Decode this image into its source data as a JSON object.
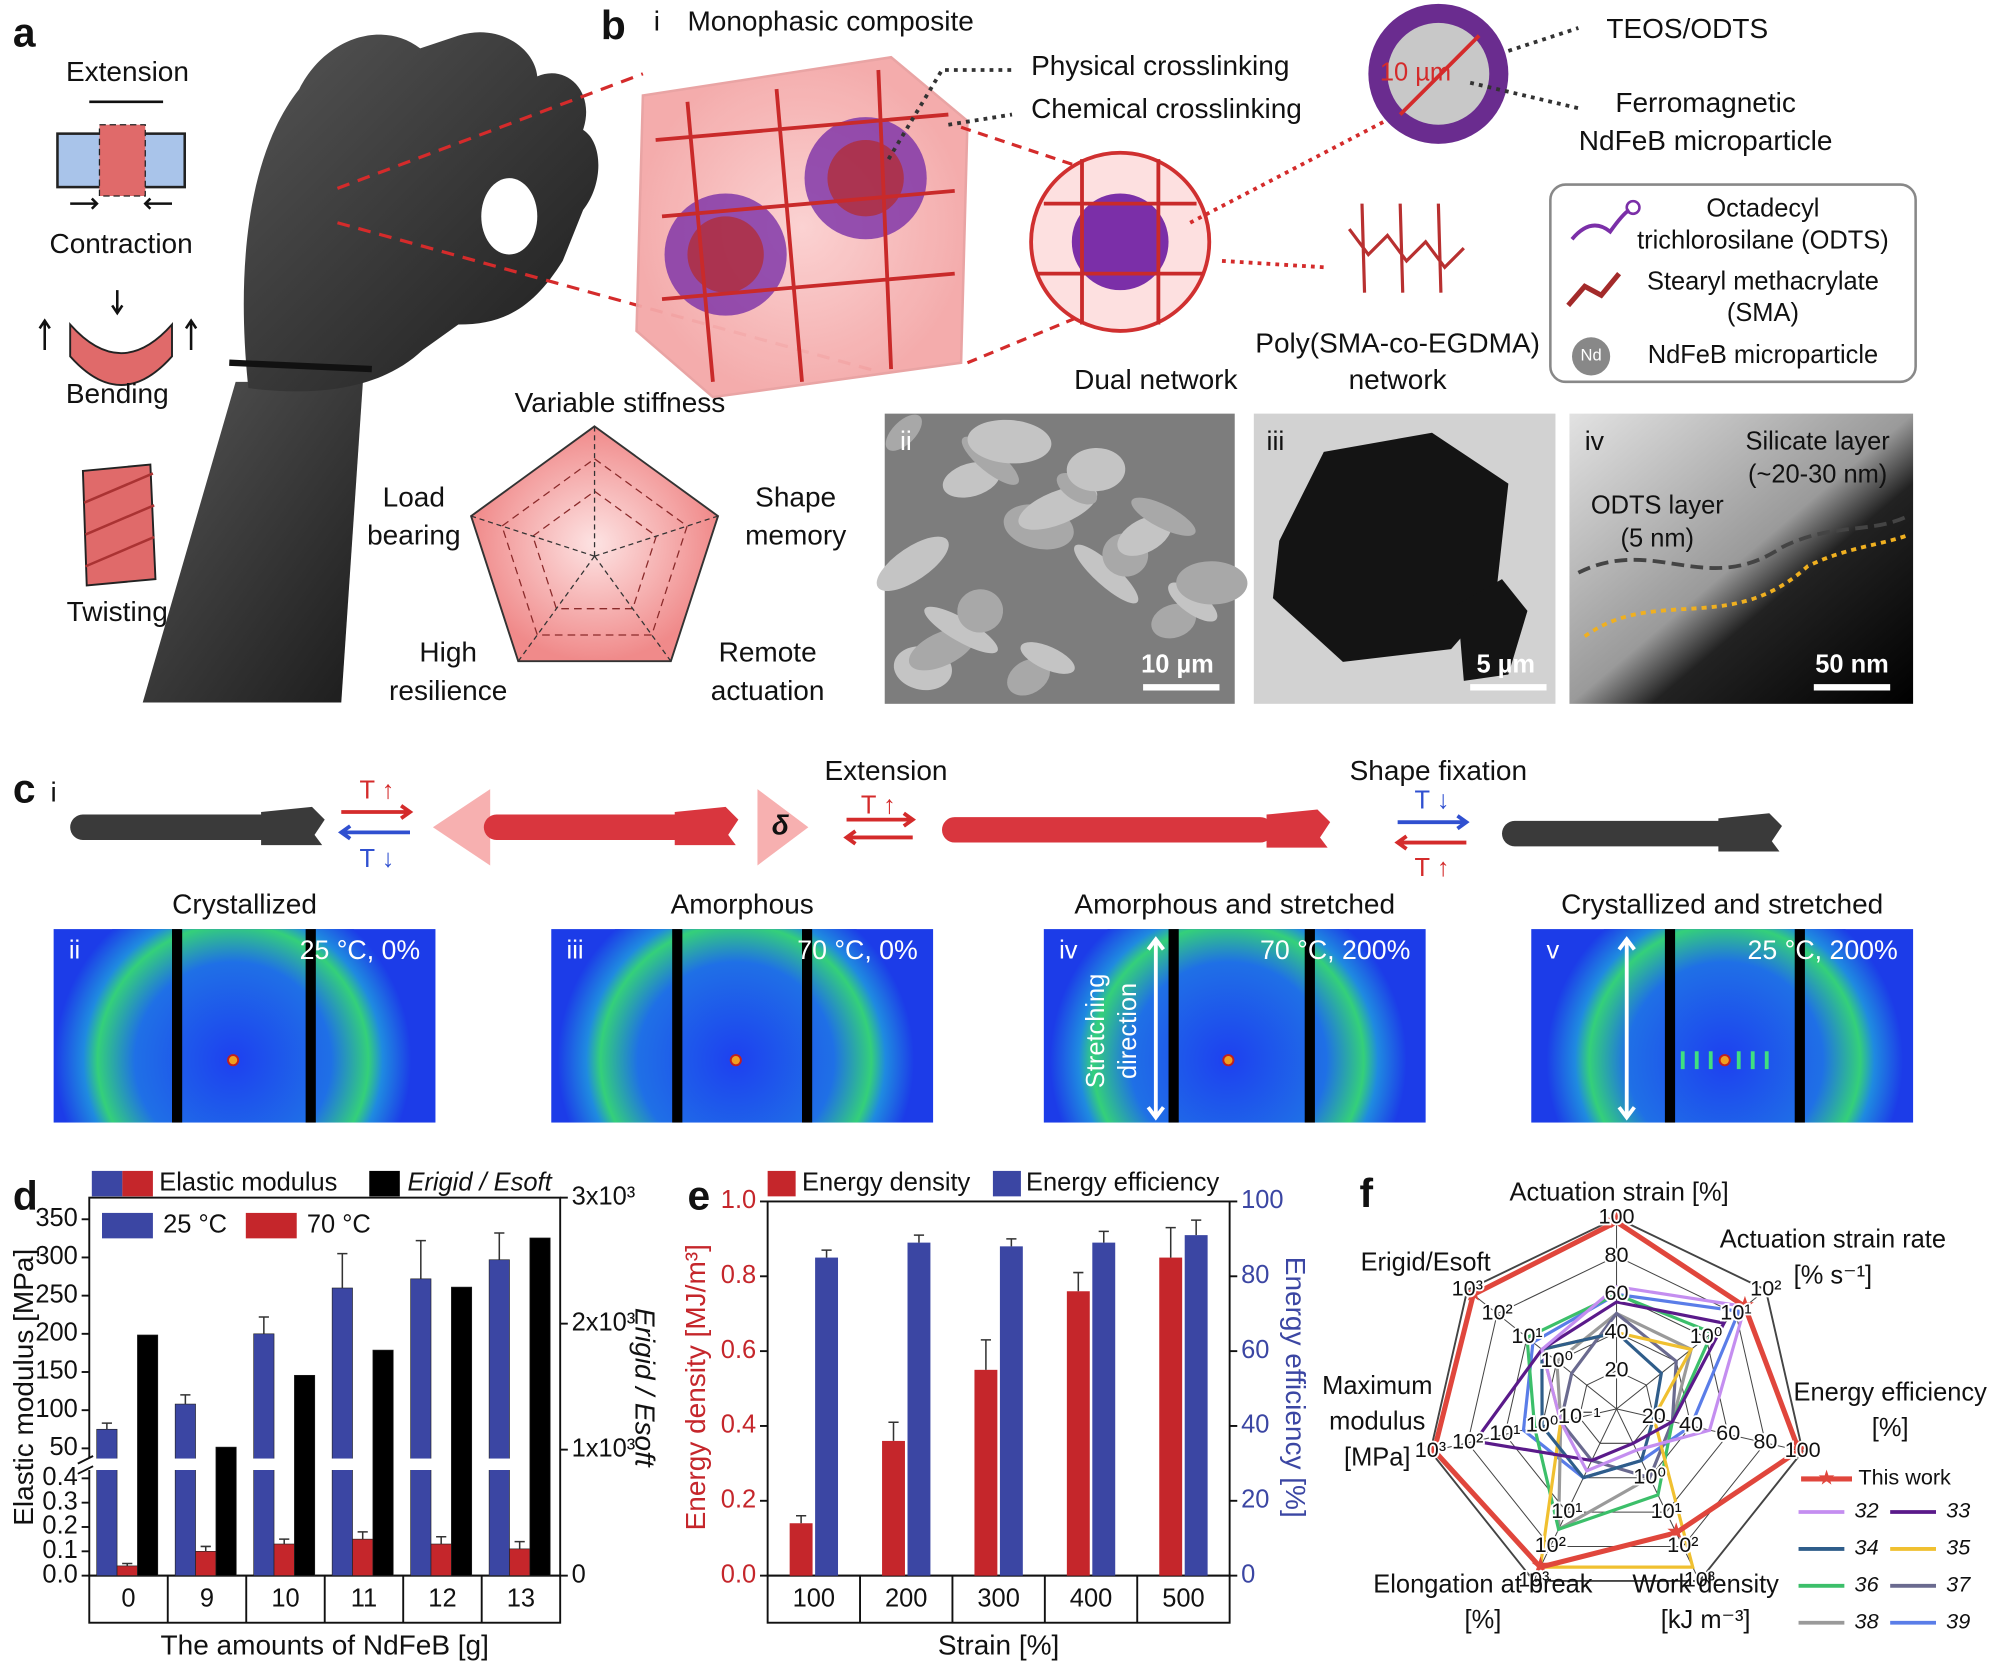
{
  "panel_labels": [
    "a",
    "b",
    "c",
    "d",
    "e",
    "f"
  ],
  "a": {
    "motions": [
      "Extension",
      "Contraction",
      "Bending",
      "Twisting"
    ],
    "properties": [
      [
        "Variable stiffness"
      ],
      [
        "Shape",
        "memory"
      ],
      [
        "Remote",
        "actuation"
      ],
      [
        "High",
        "resilience"
      ],
      [
        "Load",
        "bearing"
      ]
    ]
  },
  "b": {
    "numeral": "i",
    "title": "Monophasic composite",
    "crosslinks": [
      "Physical crosslinking",
      "Chemical crosslinking"
    ],
    "particle_size": "10 µm",
    "shell": "TEOS/ODTS",
    "core": [
      "Ferromagnetic",
      "NdFeB microparticle"
    ],
    "dual_network": "Dual network",
    "polymer": [
      "Poly(SMA-co-EGDMA)",
      "network"
    ],
    "legend": [
      [
        "Octadecyl",
        "trichlorosilane (ODTS)"
      ],
      [
        "Stearyl methacrylate",
        "(SMA)"
      ],
      [
        "NdFeB microparticle"
      ]
    ],
    "legend_icon": "Nd",
    "images": [
      {
        "numeral": "ii",
        "scale_bar": "10 µm"
      },
      {
        "numeral": "iii",
        "scale_bar": "5 µm"
      },
      {
        "numeral": "iv",
        "scale_bar": "50 nm",
        "notes": [
          [
            "Silicate layer",
            "(~20-30 nm)"
          ],
          [
            "ODTS layer",
            "(5 nm)"
          ]
        ]
      }
    ]
  },
  "c": {
    "numeral": "i",
    "steps": [
      "Extension",
      "Shape fixation"
    ],
    "arrow_labels": [
      "T ↑",
      "T ↓",
      "T ↑",
      "T ↓",
      "T ↑"
    ],
    "delta": "δ",
    "states": [
      {
        "title": "Crystallized",
        "numeral": "ii",
        "condition": "25 °C, 0%"
      },
      {
        "title": "Amorphous",
        "numeral": "iii",
        "condition": "70 °C, 0%"
      },
      {
        "title": "Amorphous and stretched",
        "numeral": "iv",
        "condition": "70 °C, 200%"
      },
      {
        "title": "Crystallized and stretched",
        "numeral": "v",
        "condition": "25 °C, 200%"
      }
    ],
    "stretch_label": [
      "Stretching",
      "direction"
    ]
  },
  "chart_data": [
    {
      "type": "bar",
      "categories": [
        "0",
        "9",
        "10",
        "11",
        "12",
        "13"
      ],
      "xlabel": "The amounts of NdFeB [g]",
      "ylabel": "Elastic modulus [MPa]",
      "y2label": "Erigid / Esoft",
      "legend_group": "Elastic modulus",
      "series": [
        {
          "name": "25 °C",
          "color": "#3b46a3",
          "values": [
            75,
            108,
            200,
            260,
            272,
            297
          ],
          "errors": [
            8,
            12,
            22,
            45,
            50,
            35
          ]
        },
        {
          "name": "70 °C",
          "color": "#c5262b",
          "values": [
            0.04,
            0.1,
            0.13,
            0.15,
            0.13,
            0.11
          ],
          "errors": [
            0.01,
            0.02,
            0.02,
            0.03,
            0.03,
            0.03
          ]
        },
        {
          "name": "Erigid / Esoft",
          "color": "#000000",
          "axis": "y2",
          "values": [
            1910,
            1020,
            1590,
            1790,
            2290,
            2680
          ]
        }
      ],
      "ylim": [
        0,
        360
      ],
      "ybreak": [
        0.45,
        30
      ],
      "yticks": [
        {
          "value": 0,
          "label": "0.0"
        },
        0.1,
        0.2,
        0.3,
        0.4,
        50,
        100,
        150,
        200,
        250,
        300,
        350
      ],
      "y2lim": [
        0,
        3000
      ],
      "y2ticks": [
        0,
        {
          "value": 1000,
          "label": "1x10³"
        },
        {
          "value": 2000,
          "label": "2x10³"
        },
        {
          "value": 3000,
          "label": "3x10³"
        }
      ]
    },
    {
      "type": "bar",
      "categories": [
        "100",
        "200",
        "300",
        "400",
        "500"
      ],
      "xlabel": "Strain [%]",
      "ylabel": "Energy density [MJ/m³]",
      "y2label": "Energy efficiency [%]",
      "series": [
        {
          "name": "Energy density",
          "color": "#c5262b",
          "values": [
            0.14,
            0.36,
            0.55,
            0.76,
            0.85
          ],
          "errors": [
            0.02,
            0.05,
            0.08,
            0.05,
            0.08
          ]
        },
        {
          "name": "Energy efficiency",
          "color": "#3b46a3",
          "axis": "y2",
          "values": [
            85,
            89,
            88,
            89,
            91
          ],
          "errors": [
            2,
            2,
            2,
            3,
            4
          ]
        }
      ],
      "ylim": [
        0,
        1
      ],
      "yticks": [
        {
          "value": 0,
          "label": "0.0"
        },
        0.2,
        0.4,
        0.6,
        0.8,
        {
          "value": 1,
          "label": "1.0"
        }
      ],
      "y2lim": [
        0,
        100
      ],
      "y2ticks": [
        0,
        20,
        40,
        60,
        80,
        100
      ]
    },
    {
      "type": "radar",
      "axes": [
        [
          "Actuation strain [%]"
        ],
        [
          "Actuation strain rate",
          "[% s⁻¹]"
        ],
        [
          "Energy efficiency",
          "[%]"
        ],
        [
          "Work density",
          "[kJ m⁻³]"
        ],
        [
          "Elongation at break",
          "[%]"
        ],
        [
          "Maximum",
          "modulus",
          "[MPa]"
        ],
        [
          "Erigid/Esoft"
        ]
      ],
      "axis_tick_labels": [
        [
          "20",
          "40",
          "60",
          "80",
          "100"
        ],
        [
          "10⁰",
          "10¹",
          "10²"
        ],
        [
          "20",
          "40",
          "60",
          "80",
          "100"
        ],
        [
          "10⁰",
          "10¹",
          "10²",
          "10³"
        ],
        [
          "10¹",
          "10²",
          "10³"
        ],
        [
          "10⁻¹",
          "10⁰",
          "10¹",
          "10²",
          "10³"
        ],
        [
          "10⁰",
          "10¹",
          "10²",
          "10³"
        ]
      ],
      "rlim": [
        0,
        5
      ],
      "series": [
        {
          "name": "This work",
          "color": "#e0463c",
          "values": [
            4.9,
            4.3,
            4.9,
            3.6,
            4.6,
            4.9,
            4.8
          ]
        },
        {
          "name": "32",
          "color": "#c48ef0",
          "values": [
            3.2,
            4.3,
            2.5,
            1.2,
            1.8,
            1.5,
            2.5
          ]
        },
        {
          "name": "33",
          "color": "#5a1a8a",
          "values": [
            2.8,
            3.6,
            1.5,
            1,
            1.5,
            3.8,
            2.5
          ]
        },
        {
          "name": "34",
          "color": "#2f5d8a",
          "values": [
            2,
            1.5,
            1,
            1.5,
            2,
            2,
            2.5
          ]
        },
        {
          "name": "35",
          "color": "#f0c030",
          "values": [
            2,
            2.5,
            1,
            4.6,
            4.6,
            1.5,
            2.5
          ]
        },
        {
          "name": "36",
          "color": "#3cbf6a",
          "values": [
            3,
            3.2,
            1.5,
            2.5,
            3.5,
            2.2,
            3
          ]
        },
        {
          "name": "37",
          "color": "#6a6a8f",
          "values": [
            2.5,
            2,
            1.5,
            2,
            1.5,
            1.5,
            1.5
          ]
        },
        {
          "name": "38",
          "color": "#9a9a9a",
          "values": [
            2.5,
            2.5,
            1.5,
            2,
            3.5,
            1.5,
            2
          ]
        },
        {
          "name": "39",
          "color": "#5a7de8",
          "values": [
            3,
            4.1,
            2,
            1.5,
            2,
            2.5,
            2.8
          ]
        }
      ]
    }
  ]
}
